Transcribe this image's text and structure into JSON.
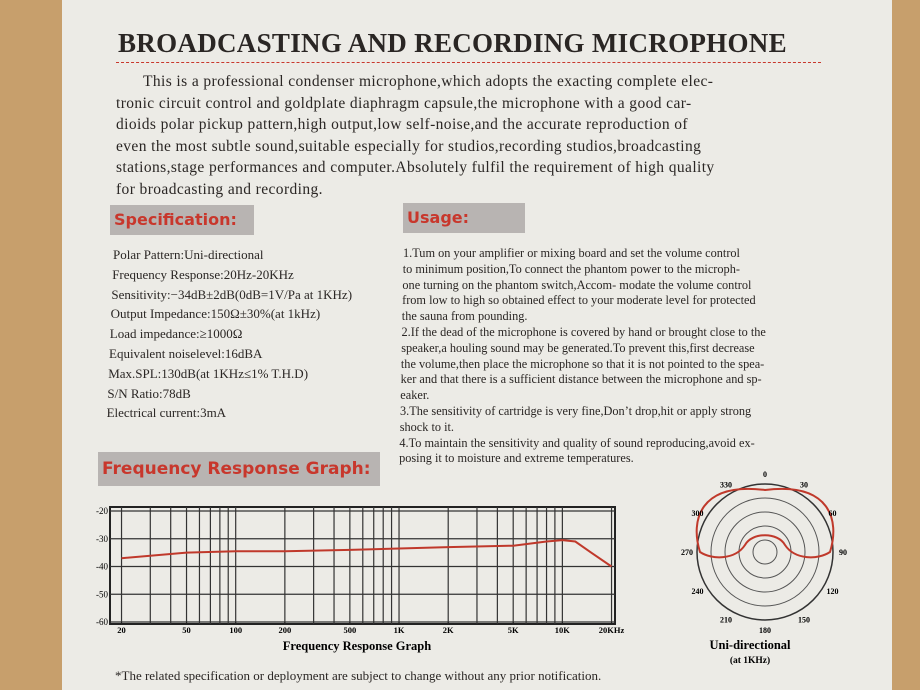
{
  "title": "BROADCASTING AND RECORDING MICROPHONE",
  "intro": [
    "This is a professional condenser microphone,which adopts the exacting complete elec-",
    "tronic circuit control and goldplate diaphragm capsule,the microphone with a good car-",
    "dioids polar pickup pattern,high output,low self-noise,and the accurate reproduction of",
    "even the most subtle sound,suitable especially for studios,recording studios,broadcasting",
    "stations,stage performances and computer.Absolutely fulfil the requirement of high quality",
    "for broadcasting and recording."
  ],
  "specification": {
    "heading": "Specification:",
    "items": [
      "Polar Pattern:Uni-directional",
      "Frequency Response:20Hz-20KHz",
      "Sensitivity:−34dB±2dB(0dB=1V/Pa at 1KHz)",
      "Output Impedance:150Ω±30%(at 1kHz)",
      "Load impedance:≥1000Ω",
      "Equivalent noiselevel:16dBA",
      "Max.SPL:130dB(at 1KHz≤1% T.H.D)",
      "S/N Ratio:78dB",
      "Electrical current:3mA"
    ]
  },
  "usage": {
    "heading": "Usage:",
    "lines": [
      "1.Tum on your amplifier or mixing board and set the volume control",
      "to minimum position,To connect the phantom  power to the microph-",
      "one turning on the phantom switch,Accom- modate the volume control",
      "from low to high so obtained effect to your moderate level for protected",
      "the sauna from pounding.",
      "2.If the dead of the microphone is covered by hand or brought close to the",
      "speaker,a houling sound may be generated.To prevent this,first decrease",
      "the volume,then place the microphone so that it is not pointed to the spea-",
      "ker and that there is a sufficient distance between the microphone and sp-",
      "eaker.",
      "3.The sensitivity of cartridge is very fine,Don’t drop,hit or apply strong",
      "shock to it.",
      "4.To maintain the sensitivity and quality of sound reproducing,avoid ex-",
      "posing it to moisture and extreme temperatures."
    ]
  },
  "graph_heading": "Frequency Response Graph:",
  "chart_data": {
    "type": "line",
    "title": "Frequency Response Graph",
    "log_x": true,
    "color": "#c0392b",
    "x": [
      20,
      50,
      100,
      200,
      500,
      1000,
      2000,
      5000,
      8000,
      10000,
      12000,
      15000,
      20000
    ],
    "values": [
      -37,
      -35,
      -34.5,
      -34.5,
      -34,
      -33.5,
      -33,
      -32.5,
      -31,
      -30.5,
      -31,
      -35,
      -40
    ],
    "xlim": [
      17,
      21000
    ],
    "ylim": [
      -60,
      -20
    ],
    "xticks": [
      20,
      50,
      100,
      200,
      500,
      {
        "value": 1000,
        "label": "1K"
      },
      {
        "value": 2000,
        "label": "2K"
      },
      {
        "value": 5000,
        "label": "5K"
      },
      {
        "value": 10000,
        "label": "10K"
      },
      {
        "value": 20000,
        "label": "20KHz"
      }
    ],
    "yticks": [
      -20,
      -30,
      -40,
      -50,
      -60
    ],
    "grid": true
  },
  "polar": {
    "angle_labels": [
      0,
      30,
      60,
      90,
      120,
      150,
      180,
      210,
      240,
      270,
      300,
      330
    ],
    "caption": "Uni-directional",
    "subcaption": "(at 1KHz)"
  },
  "footnote": "*The related specification or deployment are subject to change without any prior notification."
}
